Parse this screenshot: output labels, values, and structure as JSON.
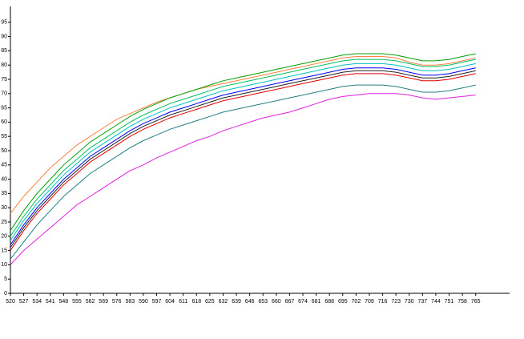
{
  "chart_data": {
    "type": "line",
    "x": [
      520,
      527,
      534,
      541,
      548,
      555,
      562,
      569,
      576,
      583,
      590,
      597,
      604,
      611,
      618,
      625,
      632,
      639,
      646,
      653,
      660,
      667,
      674,
      681,
      688,
      695,
      702,
      709,
      716,
      723,
      730,
      737,
      744,
      751,
      758,
      765
    ],
    "xlim": [
      520,
      782
    ],
    "xticks": [
      520,
      527,
      534,
      541,
      548,
      555,
      562,
      569,
      576,
      583,
      590,
      597,
      604,
      611,
      618,
      625,
      632,
      639,
      646,
      653,
      660,
      667,
      674,
      681,
      688,
      695,
      702,
      709,
      716,
      723,
      730,
      737,
      744,
      751,
      758,
      765
    ],
    "ylim": [
      0,
      100
    ],
    "yticks": [
      0,
      5,
      10,
      15,
      20,
      25,
      30,
      35,
      40,
      45,
      50,
      55,
      60,
      65,
      70,
      75,
      80,
      85,
      90,
      95
    ],
    "series": [
      {
        "color": "#ff8040",
        "values": [
          28,
          34,
          39,
          44,
          48,
          52,
          55,
          58,
          61,
          63,
          65,
          67,
          68.5,
          70,
          71.5,
          72.5,
          73.5,
          74.5,
          75.5,
          76.5,
          77.5,
          78.5,
          79.5,
          80.5,
          81.5,
          82.5,
          83,
          83,
          83,
          82.5,
          81,
          80,
          80,
          80.5,
          81.5,
          82.5
        ]
      },
      {
        "color": "#00a000",
        "values": [
          22,
          29,
          35,
          40,
          45,
          49,
          53,
          56,
          59,
          62,
          64.5,
          66.5,
          68.5,
          70,
          71.5,
          73,
          74.5,
          75.5,
          76.5,
          77.5,
          78.5,
          79.5,
          80.5,
          81.5,
          82.5,
          83.5,
          84,
          84,
          84,
          83.5,
          82.5,
          81.5,
          81.5,
          82,
          83,
          84
        ]
      },
      {
        "color": "#00c060",
        "values": [
          20,
          27,
          33,
          38,
          43,
          47,
          51,
          54,
          57,
          60,
          62.5,
          64.5,
          66.5,
          68,
          69.5,
          71,
          72.5,
          73.5,
          74.5,
          75.5,
          76.5,
          77.5,
          78.5,
          79.5,
          80.5,
          81.5,
          82,
          82,
          82,
          81.5,
          80.5,
          79.5,
          79.5,
          80,
          81,
          82
        ]
      },
      {
        "color": "#00c0c0",
        "values": [
          18.5,
          25.5,
          31.5,
          36.5,
          41.5,
          45.5,
          49.5,
          52.5,
          55.5,
          58.5,
          61,
          63,
          65,
          66.5,
          68,
          69.5,
          71,
          72,
          73,
          74,
          75,
          76,
          77,
          78,
          79,
          80,
          80.5,
          80.5,
          80.5,
          80,
          79,
          78,
          78,
          78.5,
          79.5,
          80.5
        ]
      },
      {
        "color": "#0000ff",
        "values": [
          17,
          24,
          30,
          35,
          40,
          44,
          48,
          51,
          54,
          57,
          59.5,
          61.5,
          63.5,
          65,
          66.5,
          68,
          69.5,
          70.5,
          71.5,
          72.5,
          73.5,
          74.5,
          75.5,
          76.5,
          77.5,
          78.5,
          79,
          79,
          79,
          78.5,
          77.5,
          76.5,
          76.5,
          77,
          78,
          79
        ]
      },
      {
        "color": "#202020",
        "values": [
          16,
          23,
          29,
          34,
          39,
          43,
          47,
          50,
          53,
          56,
          58.5,
          60.5,
          62.5,
          64,
          65.5,
          67,
          68.5,
          69.5,
          70.5,
          71.5,
          72.5,
          73.5,
          74.5,
          75.5,
          76.5,
          77.5,
          78,
          78,
          78,
          77.5,
          76.5,
          75.5,
          75.5,
          76,
          77,
          78
        ]
      },
      {
        "color": "#e00000",
        "values": [
          15,
          22,
          28,
          33,
          38,
          42,
          46,
          49,
          52,
          55,
          57.5,
          59.5,
          61.5,
          63,
          64.5,
          66,
          67.5,
          68.5,
          69.5,
          70.5,
          71.5,
          72.5,
          73.5,
          74.5,
          75.5,
          76.5,
          77,
          77,
          77,
          76.5,
          75.5,
          74.5,
          74.5,
          75,
          76,
          77
        ]
      },
      {
        "color": "#208080",
        "values": [
          12,
          18,
          24,
          29,
          34,
          38,
          42,
          45,
          48,
          51,
          53.5,
          55.5,
          57.5,
          59,
          60.5,
          62,
          63.5,
          64.5,
          65.5,
          66.5,
          67.5,
          68.5,
          69.5,
          70.5,
          71.5,
          72.5,
          73,
          73,
          73,
          72.5,
          71.5,
          70.5,
          70.5,
          71,
          72,
          73
        ]
      },
      {
        "color": "#e020e0",
        "values": [
          10,
          15,
          19,
          23,
          27,
          31,
          34,
          37,
          40,
          43,
          45,
          47.5,
          49.5,
          51.5,
          53.5,
          55,
          57,
          58.5,
          60,
          61.5,
          62.5,
          63.5,
          65,
          66.5,
          68,
          69,
          69.5,
          70,
          70,
          70,
          69.5,
          68.5,
          68,
          68.5,
          69,
          69.5
        ]
      }
    ]
  }
}
